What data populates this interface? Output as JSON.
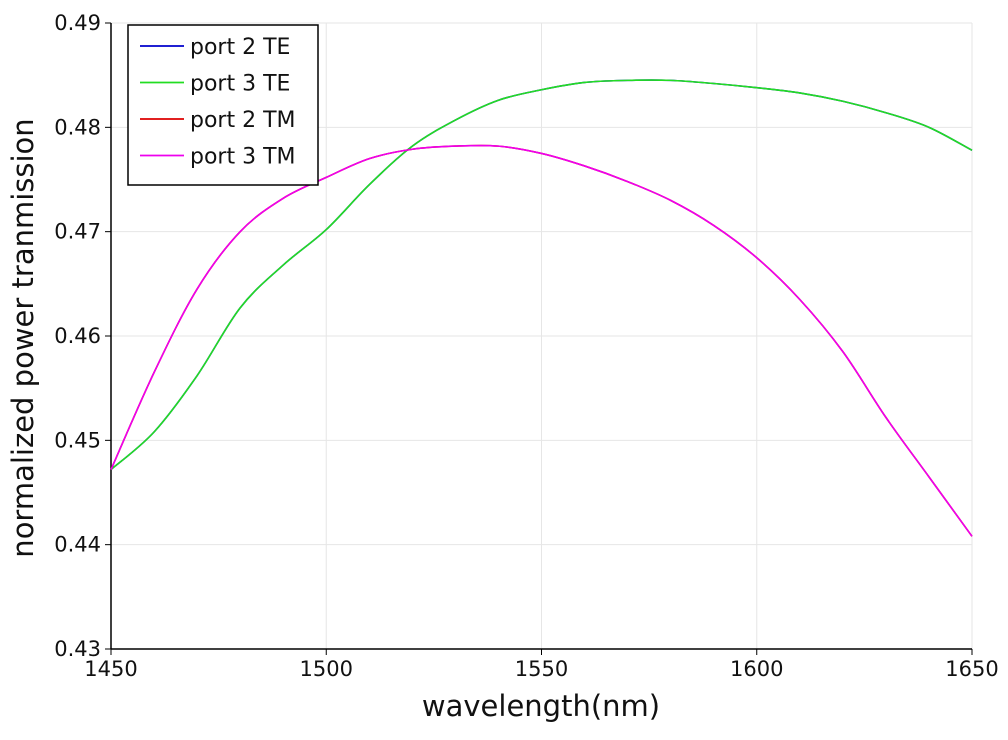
{
  "chart_data": {
    "type": "line",
    "title": "",
    "xlabel": "wavelength(nm)",
    "ylabel": "normalized power tranmission",
    "xlim": [
      1450,
      1650
    ],
    "ylim": [
      0.43,
      0.49
    ],
    "xticks": [
      "1450",
      "1500",
      "1550",
      "1600",
      "1650"
    ],
    "yticks": [
      "0.43",
      "0.44",
      "0.45",
      "0.46",
      "0.47",
      "0.48",
      "0.49"
    ],
    "grid": true,
    "legend_position": "top-left",
    "x": [
      1450,
      1460,
      1470,
      1480,
      1490,
      1500,
      1510,
      1520,
      1530,
      1540,
      1550,
      1560,
      1570,
      1580,
      1590,
      1600,
      1610,
      1620,
      1630,
      1640,
      1650
    ],
    "series": [
      {
        "name": "port 2 TE",
        "color": "#0000cc",
        "values": [
          0.4472,
          0.4508,
          0.4562,
          0.4627,
          0.4668,
          0.4702,
          0.4745,
          0.4782,
          0.4807,
          0.4826,
          0.4836,
          0.4843,
          0.4845,
          0.4845,
          0.4842,
          0.4838,
          0.4833,
          0.4825,
          0.4814,
          0.48,
          0.4778
        ]
      },
      {
        "name": "port 3 TE",
        "color": "#22dd22",
        "values": [
          0.4472,
          0.4508,
          0.4562,
          0.4627,
          0.4668,
          0.4702,
          0.4745,
          0.4782,
          0.4807,
          0.4826,
          0.4836,
          0.4843,
          0.4845,
          0.4845,
          0.4842,
          0.4838,
          0.4833,
          0.4825,
          0.4814,
          0.48,
          0.4778
        ]
      },
      {
        "name": "port 2 TM",
        "color": "#dd0000",
        "values": [
          0.4472,
          0.4565,
          0.4645,
          0.47,
          0.4732,
          0.4752,
          0.477,
          0.4779,
          0.4782,
          0.4782,
          0.4775,
          0.4763,
          0.4748,
          0.473,
          0.4706,
          0.4675,
          0.4635,
          0.4585,
          0.4522,
          0.4465,
          0.4408
        ]
      },
      {
        "name": "port 3 TM",
        "color": "#ee00ee",
        "values": [
          0.4472,
          0.4565,
          0.4645,
          0.47,
          0.4732,
          0.4752,
          0.477,
          0.4779,
          0.4782,
          0.4782,
          0.4775,
          0.4763,
          0.4748,
          0.473,
          0.4706,
          0.4675,
          0.4635,
          0.4585,
          0.4522,
          0.4465,
          0.4408
        ]
      }
    ]
  }
}
